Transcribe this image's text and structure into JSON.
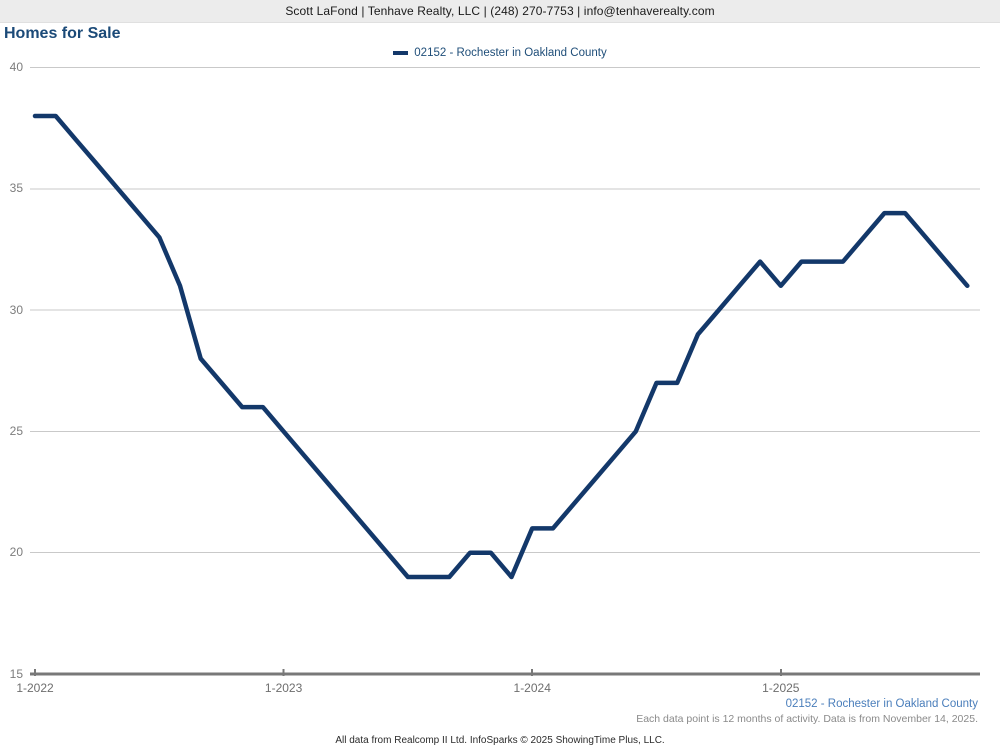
{
  "header": {
    "contact_line": "Scott LaFond | Tenhave Realty, LLC | (248) 270-7753 | info@tenhaverealty.com"
  },
  "title": "Homes for Sale",
  "legend": {
    "label": "02152 - Rochester in Oakland County"
  },
  "chart_data": {
    "type": "line",
    "title": "Homes for Sale",
    "xlabel": "",
    "ylabel": "",
    "ylim": [
      15,
      40
    ],
    "y_ticks": [
      15,
      20,
      25,
      30,
      35,
      40
    ],
    "grid": "horizontal",
    "legend_position": "top-center",
    "x_tick_labels": [
      "1-2022",
      "1-2023",
      "1-2024",
      "1-2025"
    ],
    "x": [
      "1-2022",
      "2-2022",
      "3-2022",
      "4-2022",
      "5-2022",
      "6-2022",
      "7-2022",
      "8-2022",
      "9-2022",
      "10-2022",
      "11-2022",
      "12-2022",
      "1-2023",
      "2-2023",
      "3-2023",
      "4-2023",
      "5-2023",
      "6-2023",
      "7-2023",
      "8-2023",
      "9-2023",
      "10-2023",
      "11-2023",
      "12-2023",
      "1-2024",
      "2-2024",
      "3-2024",
      "4-2024",
      "5-2024",
      "6-2024",
      "7-2024",
      "8-2024",
      "9-2024",
      "10-2024",
      "11-2024",
      "12-2024",
      "1-2025",
      "2-2025",
      "3-2025",
      "4-2025",
      "5-2025",
      "6-2025",
      "7-2025",
      "8-2025",
      "9-2025",
      "10-2025"
    ],
    "series": [
      {
        "name": "02152 - Rochester in Oakland County",
        "color": "#13386a",
        "values": [
          38,
          38,
          37,
          36,
          35,
          34,
          33,
          31,
          28,
          27,
          26,
          26,
          25,
          24,
          23,
          22,
          21,
          20,
          19,
          19,
          19,
          20,
          20,
          19,
          21,
          21,
          22,
          23,
          24,
          25,
          27,
          27,
          29,
          30,
          31,
          32,
          31,
          32,
          32,
          32,
          33,
          34,
          34,
          33,
          32,
          31
        ]
      }
    ]
  },
  "footnotes": {
    "series_note": "02152 - Rochester in Oakland County",
    "activity_note": "Each data point is 12 months of activity. Data is from November 14, 2025.",
    "source_note": "All data from Realcomp II Ltd. InfoSparks © 2025 ShowingTime Plus, LLC."
  },
  "colors": {
    "line": "#13386a",
    "title_text": "#1b4a78",
    "legend_text": "#1f4e79",
    "series_note_text": "#4a7ebb",
    "gridline": "#c9c9c9",
    "axis": "#787878",
    "header_bg": "#ececec"
  }
}
